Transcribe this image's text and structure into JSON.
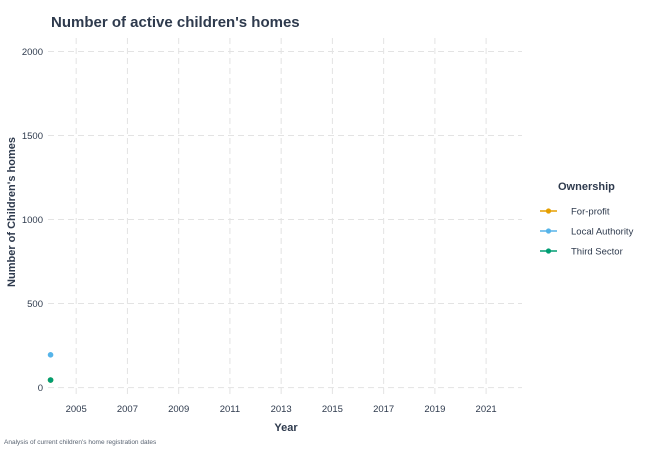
{
  "chart_data": {
    "type": "line",
    "title": "Number of active children's homes",
    "xlabel": "Year",
    "ylabel": "Number of Children's homes",
    "caption": "Analysis of current children's home registration dates",
    "x_ticks": [
      2005,
      2007,
      2009,
      2011,
      2013,
      2015,
      2017,
      2019,
      2021
    ],
    "y_ticks": [
      0,
      500,
      1000,
      1500,
      2000
    ],
    "xlim": [
      2003.9,
      2022.4
    ],
    "ylim": [
      -50,
      2080
    ],
    "grid": true,
    "legend_title": "Ownership",
    "legend_position": "right",
    "series": [
      {
        "name": "For-profit",
        "color": "#E69F00",
        "points": [
          [
            2004,
            45
          ]
        ]
      },
      {
        "name": "Local Authority",
        "color": "#56B4E9",
        "points": [
          [
            2004,
            195
          ]
        ]
      },
      {
        "name": "Third Sector",
        "color": "#009E73",
        "points": [
          [
            2004,
            45
          ]
        ]
      }
    ]
  }
}
